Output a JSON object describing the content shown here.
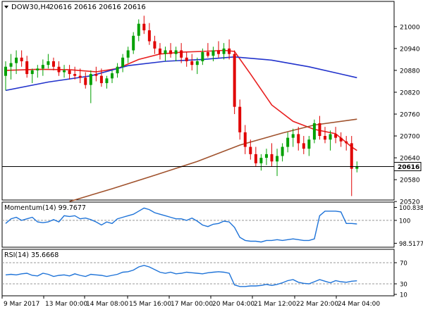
{
  "header": {
    "symbol": "DOW30,H4",
    "ohlc": "20616 20616 20616 20616"
  },
  "colors": {
    "bull": "#00a000",
    "bear": "#e00000",
    "ma_fast": "#e81f1f",
    "ma_mid": "#2233cc",
    "ma_slow": "#a0522d",
    "osc": "#1e73d8",
    "price_line": "#000000",
    "grid": "#cccccc"
  },
  "chart_data": [
    {
      "type": "candlestick",
      "title": "DOW30,H4",
      "ylim": [
        20528,
        21050
      ],
      "yticks": [
        "21000",
        "20940",
        "20880",
        "20820",
        "20760",
        "20700",
        "20640",
        "20580",
        "20520"
      ],
      "current_price_label": "20616",
      "current_price": 20616,
      "xticks": [
        "9 Mar 2017",
        "13 Mar 00:00",
        "14 Mar 08:00",
        "15 Mar 16:00",
        "17 Mar 00:00",
        "20 Mar 04:00",
        "21 Mar 12:00",
        "22 Mar 20:00",
        "24 Mar 04:00"
      ],
      "candles": [
        [
          20865,
          20905,
          20825,
          20890
        ],
        [
          20890,
          20925,
          20855,
          20900
        ],
        [
          20900,
          20935,
          20870,
          20915
        ],
        [
          20915,
          20935,
          20890,
          20905
        ],
        [
          20905,
          20920,
          20860,
          20870
        ],
        [
          20870,
          20885,
          20845,
          20880
        ],
        [
          20880,
          20895,
          20860,
          20885
        ],
        [
          20885,
          20910,
          20865,
          20895
        ],
        [
          20895,
          20925,
          20885,
          20905
        ],
        [
          20905,
          20915,
          20880,
          20890
        ],
        [
          20890,
          20905,
          20865,
          20875
        ],
        [
          20875,
          20895,
          20860,
          20880
        ],
        [
          20880,
          20895,
          20855,
          20870
        ],
        [
          20870,
          20890,
          20855,
          20865
        ],
        [
          20865,
          20885,
          20845,
          20860
        ],
        [
          20860,
          20875,
          20830,
          20840
        ],
        [
          20840,
          20880,
          20790,
          20870
        ],
        [
          20870,
          20890,
          20850,
          20865
        ],
        [
          20865,
          20885,
          20835,
          20845
        ],
        [
          20845,
          20865,
          20830,
          20858
        ],
        [
          20858,
          20880,
          20845,
          20872
        ],
        [
          20872,
          20900,
          20860,
          20890
        ],
        [
          20890,
          20925,
          20875,
          20915
        ],
        [
          20915,
          20945,
          20900,
          20935
        ],
        [
          20935,
          20985,
          20925,
          20975
        ],
        [
          20975,
          21020,
          20960,
          21008
        ],
        [
          21008,
          21030,
          20980,
          20990
        ],
        [
          20990,
          21010,
          20950,
          20960
        ],
        [
          20960,
          20975,
          20925,
          20940
        ],
        [
          20940,
          20955,
          20910,
          20925
        ],
        [
          20925,
          20945,
          20905,
          20935
        ],
        [
          20935,
          20955,
          20915,
          20925
        ],
        [
          20925,
          20945,
          20905,
          20935
        ],
        [
          20935,
          20955,
          20900,
          20915
        ],
        [
          20915,
          20930,
          20890,
          20905
        ],
        [
          20905,
          20925,
          20880,
          20895
        ],
        [
          20895,
          20915,
          20870,
          20905
        ],
        [
          20905,
          20940,
          20895,
          20930
        ],
        [
          20930,
          20955,
          20915,
          20920
        ],
        [
          20920,
          20945,
          20905,
          20935
        ],
        [
          20935,
          20960,
          20915,
          20925
        ],
        [
          20925,
          20955,
          20910,
          20940
        ],
        [
          20940,
          20965,
          20910,
          20925
        ],
        [
          20925,
          20935,
          20760,
          20780
        ],
        [
          20780,
          20800,
          20690,
          20710
        ],
        [
          20710,
          20730,
          20650,
          20670
        ],
        [
          20670,
          20690,
          20635,
          20650
        ],
        [
          20650,
          20670,
          20615,
          20625
        ],
        [
          20625,
          20650,
          20605,
          20640
        ],
        [
          20640,
          20665,
          20620,
          20650
        ],
        [
          20650,
          20680,
          20615,
          20630
        ],
        [
          20630,
          20665,
          20590,
          20645
        ],
        [
          20645,
          20680,
          20630,
          20670
        ],
        [
          20670,
          20710,
          20655,
          20695
        ],
        [
          20695,
          20720,
          20670,
          20705
        ],
        [
          20705,
          20725,
          20660,
          20680
        ],
        [
          20680,
          20700,
          20650,
          20665
        ],
        [
          20665,
          20700,
          20645,
          20690
        ],
        [
          20690,
          20745,
          20680,
          20735
        ],
        [
          20735,
          20755,
          20690,
          20700
        ],
        [
          20700,
          20725,
          20680,
          20690
        ],
        [
          20690,
          20715,
          20660,
          20705
        ],
        [
          20705,
          20725,
          20680,
          20695
        ],
        [
          20695,
          20710,
          20670,
          20685
        ],
        [
          20685,
          20700,
          20660,
          20680
        ],
        [
          20680,
          20700,
          20535,
          20610
        ],
        [
          20610,
          20630,
          20600,
          20616
        ]
      ],
      "series": [
        {
          "name": "fast MA",
          "color_key": "ma_fast",
          "values": [
            [
              0,
              20880
            ],
            [
              6,
              20883
            ],
            [
              12,
              20882
            ],
            [
              17,
              20876
            ],
            [
              21,
              20885
            ],
            [
              25,
              20910
            ],
            [
              29,
              20925
            ],
            [
              33,
              20930
            ],
            [
              37,
              20932
            ],
            [
              41,
              20935
            ],
            [
              43,
              20932
            ],
            [
              46,
              20870
            ],
            [
              50,
              20785
            ],
            [
              54,
              20740
            ],
            [
              58,
              20718
            ],
            [
              62,
              20706
            ],
            [
              65,
              20670
            ],
            [
              66,
              20660
            ]
          ]
        },
        {
          "name": "mid MA",
          "color_key": "ma_mid",
          "values": [
            [
              0,
              20825
            ],
            [
              8,
              20848
            ],
            [
              16,
              20865
            ],
            [
              23,
              20893
            ],
            [
              30,
              20905
            ],
            [
              37,
              20910
            ],
            [
              43,
              20917
            ],
            [
              50,
              20908
            ],
            [
              57,
              20890
            ],
            [
              63,
              20870
            ],
            [
              66,
              20860
            ]
          ]
        },
        {
          "name": "slow MA",
          "color_key": "ma_slow",
          "values": [
            [
              12,
              20520
            ],
            [
              20,
              20555
            ],
            [
              28,
              20592
            ],
            [
              36,
              20630
            ],
            [
              44,
              20675
            ],
            [
              52,
              20708
            ],
            [
              58,
              20730
            ],
            [
              66,
              20746
            ]
          ]
        }
      ]
    },
    {
      "type": "line",
      "title": "Momentum(14) 99.7677",
      "name": "Momentum(14)",
      "last_value": "99.7677",
      "ylim": [
        98.4,
        101.0
      ],
      "yticks": [
        "100.8386",
        "100",
        "98.5177"
      ],
      "reference_level": 100,
      "values": [
        99.8,
        100.1,
        100.2,
        100.0,
        100.1,
        100.2,
        99.9,
        99.85,
        99.9,
        100.05,
        99.9,
        100.3,
        100.25,
        100.3,
        100.1,
        100.15,
        100.05,
        99.9,
        99.7,
        99.9,
        99.8,
        100.1,
        100.2,
        100.3,
        100.4,
        100.6,
        100.8,
        100.7,
        100.5,
        100.4,
        100.3,
        100.2,
        100.1,
        100.1,
        100.0,
        100.15,
        99.95,
        99.7,
        99.6,
        99.75,
        99.8,
        99.95,
        99.9,
        99.55,
        98.9,
        98.7,
        98.65,
        98.65,
        98.6,
        98.7,
        98.7,
        98.75,
        98.7,
        98.75,
        98.8,
        98.75,
        98.7,
        98.7,
        98.8,
        100.3,
        100.6,
        100.6,
        100.6,
        100.55,
        99.8,
        99.8,
        99.77
      ]
    },
    {
      "type": "line",
      "title": "RSI(14) 35.6668",
      "name": "RSI(14)",
      "last_value": "35.6668",
      "ylim": [
        10,
        90
      ],
      "yticks": [
        "70",
        "30",
        "10"
      ],
      "levels": [
        70,
        30
      ],
      "values": [
        47,
        48,
        47,
        49,
        50,
        46,
        45,
        50,
        48,
        44,
        46,
        47,
        45,
        49,
        46,
        44,
        48,
        47,
        46,
        44,
        46,
        48,
        52,
        53,
        56,
        62,
        65,
        62,
        57,
        52,
        50,
        52,
        49,
        50,
        52,
        51,
        50,
        49,
        51,
        52,
        53,
        52,
        50,
        28,
        25,
        25,
        26,
        26,
        27,
        29,
        27,
        29,
        32,
        36,
        38,
        33,
        31,
        30,
        34,
        38,
        35,
        32,
        36,
        34,
        33,
        35,
        35.7
      ]
    }
  ]
}
